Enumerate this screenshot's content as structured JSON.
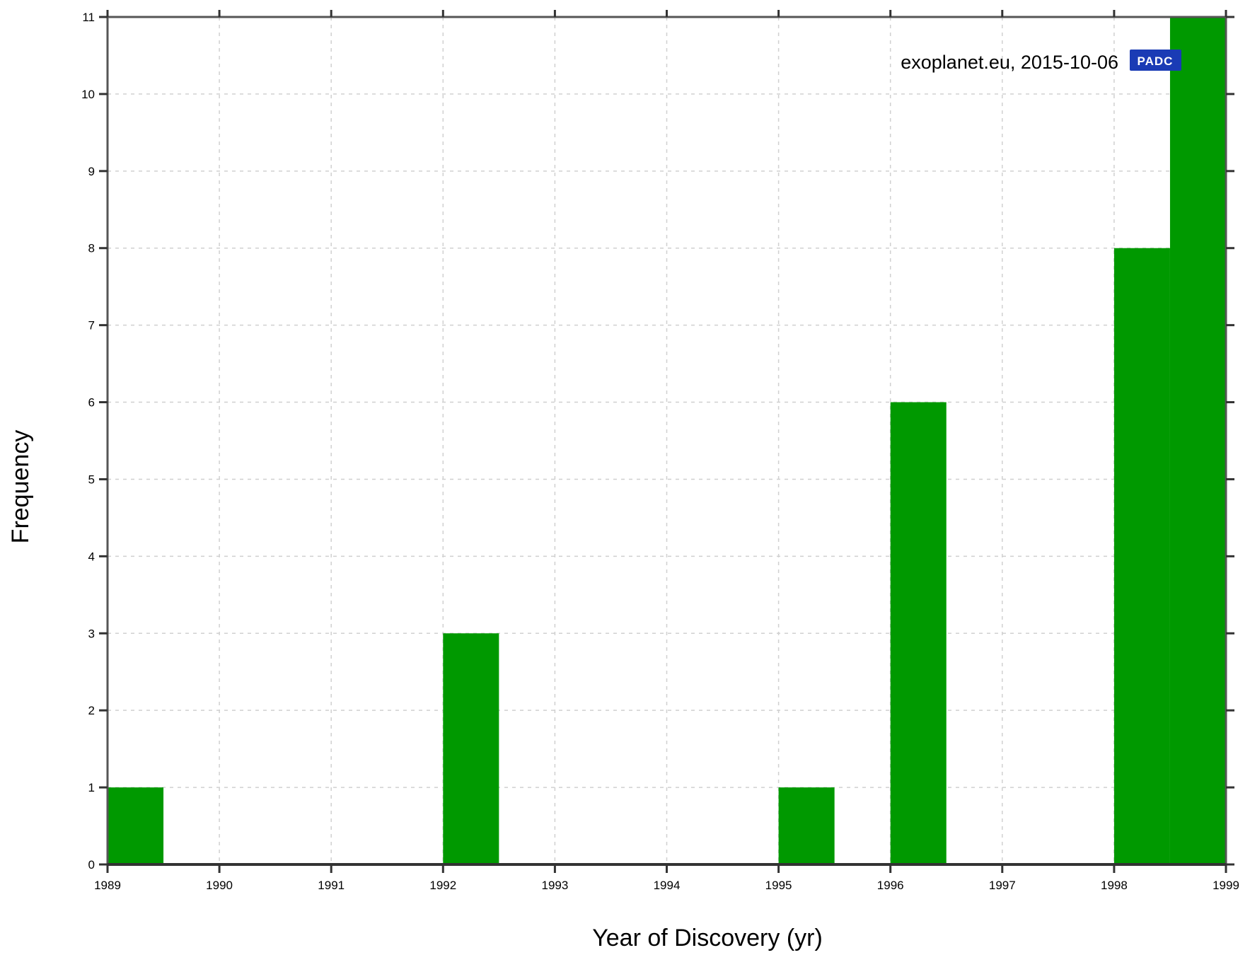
{
  "chart_data": {
    "type": "bar",
    "bin_width": 0.5,
    "bars": [
      {
        "x_start": 1989.0,
        "x_end": 1989.5,
        "value": 1
      },
      {
        "x_start": 1992.0,
        "x_end": 1992.5,
        "value": 3
      },
      {
        "x_start": 1995.0,
        "x_end": 1995.5,
        "value": 1
      },
      {
        "x_start": 1996.0,
        "x_end": 1996.5,
        "value": 6
      },
      {
        "x_start": 1998.0,
        "x_end": 1998.5,
        "value": 8
      },
      {
        "x_start": 1998.5,
        "x_end": 1999.0,
        "value": 11
      }
    ],
    "xlabel": "Year of Discovery (yr)",
    "ylabel": "Frequency",
    "xlim": [
      1989,
      1999
    ],
    "ylim": [
      0,
      11
    ],
    "x_ticks": [
      "1989",
      "1990",
      "1991",
      "1992",
      "1993",
      "1994",
      "1995",
      "1996",
      "1997",
      "1998",
      "1999"
    ],
    "y_ticks": [
      "0",
      "1",
      "2",
      "3",
      "4",
      "5",
      "6",
      "7",
      "8",
      "9",
      "10",
      "11"
    ],
    "grid": true,
    "bar_color": "#009900",
    "annotation": "exoplanet.eu, 2015-10-06",
    "badge_text": "PADC",
    "badge_color": "#1a3bb5"
  }
}
